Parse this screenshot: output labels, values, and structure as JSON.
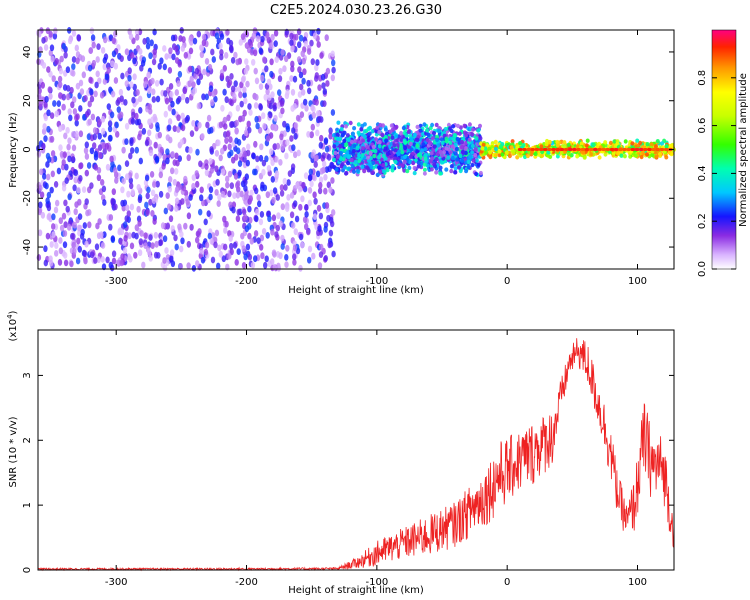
{
  "title": "C2E5.2024.030.23.26.G30",
  "chart_data": [
    {
      "type": "heatmap",
      "name": "spectrogram",
      "xlabel": "Height of straight line (km)",
      "ylabel": "Frequency (Hz)",
      "xlim": [
        -360,
        128
      ],
      "ylim": [
        -49,
        49
      ],
      "x_ticks": [
        "-300",
        "-200",
        "-100",
        "0",
        "100"
      ],
      "x_tick_values": [
        -300,
        -200,
        -100,
        0,
        100
      ],
      "y_ticks": [
        "-40",
        "-20",
        "0",
        "20",
        "40"
      ],
      "y_tick_values": [
        -40,
        -20,
        0,
        20,
        40
      ],
      "colorbar": {
        "label": "Normalized spectral amplitude",
        "range": [
          0,
          1
        ],
        "ticks": [
          "0.0",
          "0.2",
          "0.4",
          "0.6",
          "0.8"
        ],
        "tick_values": [
          0,
          0.2,
          0.4,
          0.6,
          0.8
        ]
      },
      "regions": [
        {
          "x": [
            -360,
            -133
          ],
          "y": [
            -49,
            49
          ],
          "amplitude": [
            0.05,
            0.25
          ]
        },
        {
          "x": [
            -133,
            -20
          ],
          "y": [
            -12,
            12
          ],
          "amplitude": [
            0.1,
            0.45
          ]
        },
        {
          "x": [
            -20,
            128
          ],
          "y": [
            -4,
            4
          ],
          "amplitude": [
            0.3,
            0.9
          ]
        }
      ],
      "line_frequency_hz": 0
    },
    {
      "type": "line",
      "name": "snr",
      "xlabel": "Height of straight line (km)",
      "ylabel": "SNR (10 * v/v)",
      "scale_label": "(x10^4)",
      "xlim": [
        -360,
        128
      ],
      "ylim": [
        0,
        3.7
      ],
      "x_ticks": [
        "-300",
        "-200",
        "-100",
        "0",
        "100"
      ],
      "x_tick_values": [
        -300,
        -200,
        -100,
        0,
        100
      ],
      "y_ticks": [
        "0",
        "1",
        "2",
        "3"
      ],
      "y_tick_values": [
        0,
        1,
        2,
        3
      ],
      "color": "#ee2222",
      "x": [
        -360,
        -300,
        -200,
        -130,
        -115,
        -100,
        -80,
        -60,
        -40,
        -20,
        -5,
        5,
        20,
        35,
        42,
        48,
        55,
        62,
        70,
        78,
        85,
        92,
        98,
        105,
        112,
        118,
        122,
        125,
        128
      ],
      "upper": [
        0.03,
        0.03,
        0.03,
        0.04,
        0.2,
        0.45,
        0.65,
        0.85,
        1.05,
        1.5,
        2.0,
        2.1,
        2.3,
        2.5,
        3.0,
        3.4,
        3.65,
        3.5,
        2.9,
        2.4,
        1.5,
        1.0,
        1.5,
        2.65,
        2.1,
        2.1,
        1.8,
        1.2,
        0.85
      ],
      "lower": [
        0.0,
        0.0,
        0.0,
        0.0,
        0.02,
        0.05,
        0.15,
        0.2,
        0.35,
        0.6,
        0.9,
        1.1,
        1.3,
        1.6,
        2.4,
        3.0,
        3.1,
        2.8,
        2.2,
        1.5,
        0.8,
        0.45,
        0.55,
        1.4,
        1.0,
        1.1,
        0.9,
        0.5,
        0.3
      ]
    }
  ]
}
